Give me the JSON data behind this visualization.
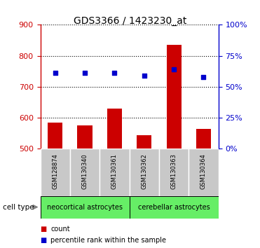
{
  "title": "GDS3366 / 1423230_at",
  "samples": [
    "GSM128874",
    "GSM130340",
    "GSM130361",
    "GSM130362",
    "GSM130363",
    "GSM130364"
  ],
  "counts": [
    585,
    575,
    630,
    543,
    835,
    565
  ],
  "percentile_ranks": [
    61,
    61,
    61,
    59,
    64,
    58
  ],
  "ylim_left": [
    500,
    900
  ],
  "yticks_left": [
    500,
    600,
    700,
    800,
    900
  ],
  "ylim_right": [
    0,
    100
  ],
  "yticks_right": [
    0,
    25,
    50,
    75,
    100
  ],
  "bar_color": "#cc0000",
  "dot_color": "#0000cc",
  "bar_width": 0.5,
  "groups": [
    {
      "label": "neocortical astrocytes",
      "start": 0,
      "end": 3,
      "color": "#66ee66"
    },
    {
      "label": "cerebellar astrocytes",
      "start": 3,
      "end": 6,
      "color": "#66ee66"
    }
  ],
  "cell_type_label": "cell type",
  "legend_count_label": "count",
  "legend_percentile_label": "percentile rank within the sample",
  "grid_color": "black",
  "background_color": "white",
  "tick_area_color": "#c8c8c8",
  "label_color_left": "#cc0000",
  "label_color_right": "#0000cc",
  "title_fontsize": 10,
  "label_fontsize": 6,
  "group_fontsize": 7,
  "legend_fontsize": 7
}
